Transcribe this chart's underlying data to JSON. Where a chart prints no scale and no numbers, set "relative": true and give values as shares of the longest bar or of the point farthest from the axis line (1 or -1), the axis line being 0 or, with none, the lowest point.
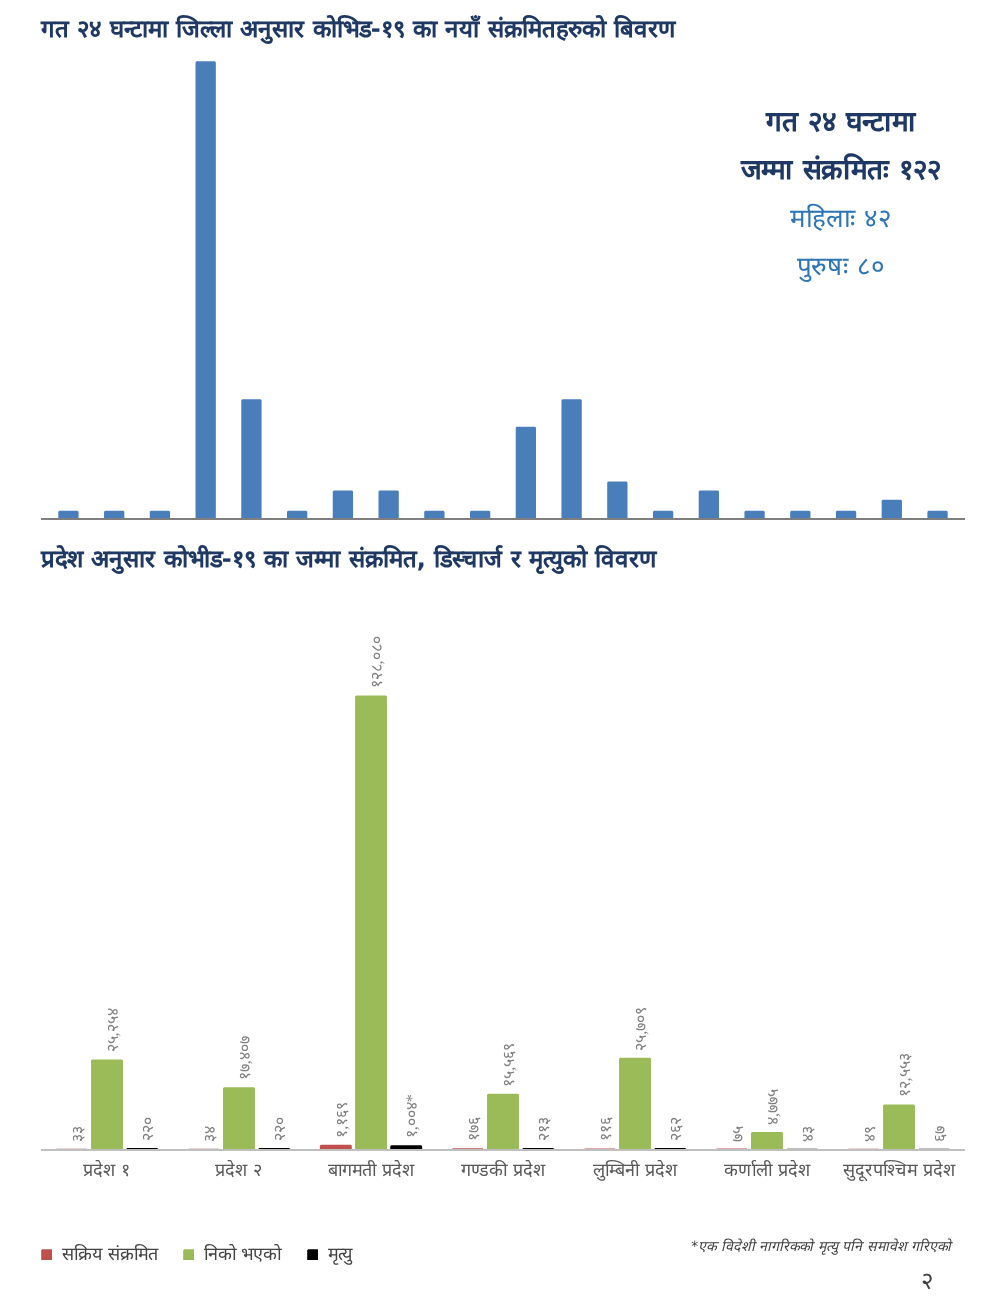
{
  "chart_data": [
    {
      "type": "bar",
      "title": "गत २४ घन्टामा जिल्ला अनुसार कोभिड-१९ का नयाँ संक्रमितहरुको बिवरण",
      "relative": true,
      "categories": [
        null,
        null,
        null,
        null,
        null,
        null,
        null,
        null,
        null,
        null,
        null,
        null,
        null,
        null,
        null,
        null,
        null,
        null,
        null,
        null
      ],
      "values": [
        0.016,
        0.016,
        0.016,
        1,
        0.26,
        0.016,
        0.06,
        0.06,
        0.016,
        0.016,
        0.2,
        0.26,
        0.08,
        0.016,
        0.06,
        0.016,
        0.016,
        0.016,
        0.04,
        0.016
      ],
      "color": "#4a7ebb",
      "grid": false,
      "legend": false,
      "annotations": [
        "गत २४ घन्टामा",
        "जम्मा संक्रमितः १२२",
        "महिलाः ४२",
        "पुरुषः ८०"
      ]
    },
    {
      "type": "bar",
      "title": "प्रदेश अनुसार कोभीड-१९ का जम्मा संक्रमित, डिस्चार्ज र मृत्युको विवरण",
      "categories": [
        "प्रदेश १",
        "प्रदेश २",
        "बागमती प्रदेश",
        "गण्डकी प्रदेश",
        "लुम्बिनी प्रदेश",
        "कर्णाली प्रदेश",
        "सुदूरपश्चिम प्रदेश"
      ],
      "series": [
        {
          "name": "सक्रिय संक्रमित",
          "color": "#c0504d",
          "values": [
            33,
            34,
            1169,
            176,
            116,
            75,
            49
          ],
          "value_labels": [
            "३३",
            "३४",
            "१,१६९",
            "१७६",
            "११६",
            "७५",
            "४९"
          ]
        },
        {
          "name": "निको भएको",
          "color": "#9bbb59",
          "values": [
            25254,
            17407,
            128080,
            15569,
            25709,
            4775,
            12553
          ],
          "value_labels": [
            "२५,२५४",
            "१७,४०७",
            "१२८,०८०",
            "१५,५६९",
            "२५,७०९",
            "४,७७५",
            "१२,५५३"
          ]
        },
        {
          "name": "मृत्यु",
          "color": "#000000",
          "values": [
            220,
            220,
            1004,
            213,
            262,
            43,
            67
          ],
          "value_labels": [
            "२२०",
            "२२०",
            "१,००४*",
            "२१३",
            "२६२",
            "४३",
            "६७"
          ]
        }
      ],
      "grid": false,
      "legend": "bottom left",
      "tick_labels": "x",
      "annotations": [
        "*एक विदेशी नागरिकको मृत्यु पनि समावेश गरिएको",
        "२"
      ]
    }
  ]
}
